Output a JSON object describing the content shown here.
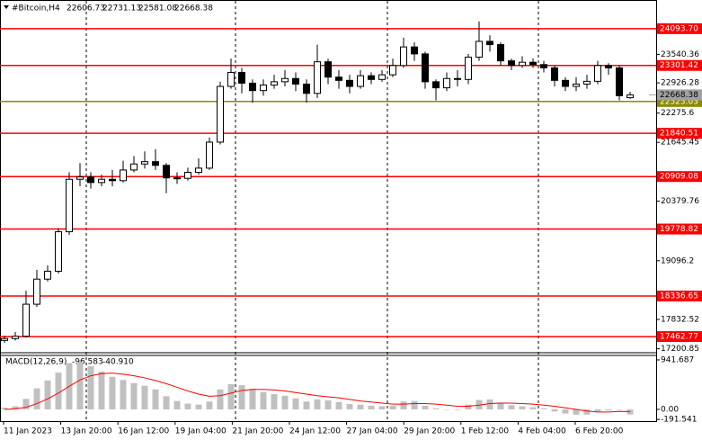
{
  "chart_data": {
    "type": "candlestick",
    "title": "#Bitcoin,H4",
    "ylim": [
      17154,
      24672
    ],
    "yticks": [
      23540.36,
      22926.28,
      22275.6,
      21645.45,
      20379.76,
      19096.2,
      17832.52,
      17200.85
    ],
    "x_labels": [
      "11 Jan 2023",
      "13 Jan 20:00",
      "16 Jan 12:00",
      "19 Jan 04:00",
      "21 Jan 20:00",
      "24 Jan 12:00",
      "27 Jan 04:00",
      "29 Jan 20:00",
      "1 Feb 12:00",
      "4 Feb 04:00",
      "6 Feb 20:00"
    ],
    "levels": [
      {
        "value": 24093.7,
        "label": "24093.70",
        "color": "#ff0000"
      },
      {
        "value": 23301.42,
        "color": "#ff0000"
      },
      {
        "value": 22525.03,
        "color": "#8b8b00"
      },
      {
        "value": 21840.51,
        "color": "#ff0000"
      },
      {
        "value": 20909.08,
        "color": "#ff0000"
      },
      {
        "value": 19778.82,
        "color": "#ff0000"
      },
      {
        "value": 18336.65,
        "color": "#ff0000"
      },
      {
        "value": 17462.77,
        "color": "#ff0000"
      }
    ],
    "current_price_color": "#a0a0a0",
    "series": {
      "open": [
        17380,
        17420,
        17470,
        18160,
        18700,
        18870,
        19720,
        20850,
        20900,
        20780,
        20850,
        20820,
        21050,
        21180,
        21230,
        21150,
        20880,
        20870,
        21000,
        21090,
        21650,
        22850,
        23150,
        22920,
        22760,
        22880,
        22950,
        23020,
        22900,
        22700,
        23380,
        23050,
        22980,
        22850,
        23080,
        23000,
        23100,
        23300,
        23700,
        23550,
        22950,
        22820,
        23020,
        23000,
        23480,
        23820,
        23750,
        23400,
        23300,
        23370,
        23320,
        23250,
        22980,
        22850,
        22900,
        22960,
        23300,
        23250,
        22606.73
      ],
      "high": [
        17480,
        17560,
        18450,
        18900,
        19000,
        19800,
        21000,
        21200,
        21000,
        20950,
        21050,
        21250,
        21350,
        21450,
        21500,
        21200,
        21000,
        21100,
        21300,
        21750,
        22950,
        23450,
        23250,
        23000,
        23000,
        23100,
        23200,
        23150,
        23000,
        23750,
        23450,
        23200,
        23100,
        23200,
        23150,
        23200,
        23450,
        23900,
        23800,
        23600,
        23000,
        23150,
        23200,
        23550,
        24250,
        23950,
        23800,
        23450,
        23500,
        23450,
        23400,
        23300,
        23050,
        23050,
        23100,
        23400,
        23350,
        23300,
        22731.13
      ],
      "low": [
        17330,
        17380,
        17440,
        18100,
        18650,
        18820,
        19650,
        20700,
        20650,
        20700,
        20700,
        20780,
        21000,
        21080,
        21050,
        20550,
        20750,
        20820,
        20950,
        21050,
        21600,
        22800,
        22700,
        22500,
        22650,
        22800,
        22850,
        22750,
        22500,
        22600,
        22900,
        22800,
        22700,
        22800,
        22900,
        22950,
        23050,
        23250,
        23400,
        22800,
        22550,
        22750,
        22850,
        22900,
        23400,
        23600,
        23300,
        23200,
        23250,
        23250,
        23150,
        22850,
        22750,
        22750,
        22800,
        22900,
        23100,
        22550,
        22581.08
      ],
      "close": [
        17420,
        17470,
        18160,
        18700,
        18870,
        19720,
        20850,
        20900,
        20780,
        20850,
        20820,
        21050,
        21180,
        21230,
        21150,
        20880,
        20870,
        21000,
        21090,
        21650,
        22850,
        23150,
        22920,
        22760,
        22880,
        22950,
        23020,
        22900,
        22700,
        23380,
        23050,
        22980,
        22850,
        23080,
        23000,
        23100,
        23300,
        23700,
        23550,
        22950,
        22820,
        23020,
        23000,
        23480,
        23820,
        23750,
        23400,
        23300,
        23370,
        23320,
        23250,
        22980,
        22850,
        22900,
        22960,
        23300,
        23250,
        22650,
        22668.38
      ]
    },
    "indicator": {
      "type": "macd",
      "title": "MACD(12,26,9)",
      "main_value": -96.583,
      "signal_value": {
        "value": -40.91,
        "label": "-40.910"
      },
      "ylim": [
        -223,
        1044
      ],
      "yticks": [
        941.687,
        {
          "value": 0,
          "label": "0.00"
        },
        -191.541
      ],
      "histogram_color": "#c0c0c0",
      "signal_color": "#ff0000",
      "histogram": [
        30,
        60,
        200,
        400,
        550,
        700,
        880,
        900,
        820,
        720,
        620,
        560,
        500,
        450,
        380,
        250,
        160,
        110,
        90,
        150,
        380,
        480,
        460,
        390,
        330,
        290,
        260,
        210,
        150,
        190,
        170,
        140,
        100,
        90,
        70,
        60,
        70,
        150,
        160,
        70,
        20,
        0,
        -10,
        90,
        180,
        190,
        130,
        80,
        60,
        40,
        20,
        -40,
        -80,
        -100,
        -100,
        -40,
        -20,
        -10,
        -96.583
      ],
      "signal": [
        0,
        10,
        40,
        110,
        200,
        310,
        440,
        560,
        640,
        680,
        690,
        670,
        640,
        600,
        550,
        490,
        420,
        350,
        290,
        250,
        260,
        310,
        360,
        380,
        380,
        370,
        350,
        320,
        290,
        260,
        240,
        220,
        190,
        160,
        140,
        120,
        100,
        100,
        110,
        110,
        100,
        80,
        60,
        60,
        80,
        110,
        120,
        120,
        110,
        100,
        80,
        60,
        30,
        0,
        -30,
        -50,
        -50,
        -40,
        -40.91
      ]
    }
  }
}
